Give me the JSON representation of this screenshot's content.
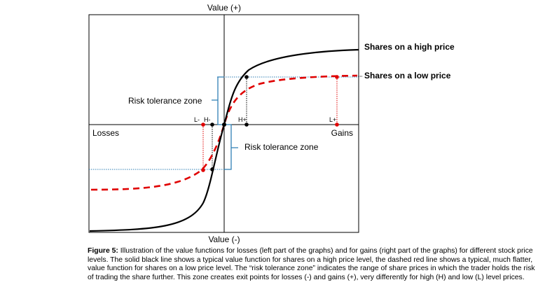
{
  "figure": {
    "y_top_label": "Value (+)",
    "y_bottom_label": "Value (-)",
    "x_left_label": "Losses",
    "x_right_label": "Gains",
    "legend_high": "Shares on a high price",
    "legend_low": "Shares on a low price",
    "zone_label_upper": "Risk tolerance zone",
    "zone_label_lower": "Risk tolerance zone",
    "point_labels": {
      "L_minus": "L-",
      "H_minus": "H-",
      "H_plus": "H+",
      "L_plus": "L+"
    },
    "colors": {
      "high_curve": "#000000",
      "low_curve": "#e00000",
      "guide_blue": "#2f7fb5",
      "axes": "#000000"
    }
  },
  "caption": {
    "label": "Figure 5:",
    "text": " Illustration of the value functions for losses (left part of the graphs) and for gains (right part of the graphs) for different stock price levels. The solid black line shows a typical value function for shares on a high price level, the dashed red line shows a typical, much flatter, value function for shares on a low price level. The “risk tolerance zone” indicates the range of share prices in which the trader holds the risk of trading the share further. This zone creates exit points for losses (-) and gains (+), very differently for high (H) and low (L) level prices."
  }
}
